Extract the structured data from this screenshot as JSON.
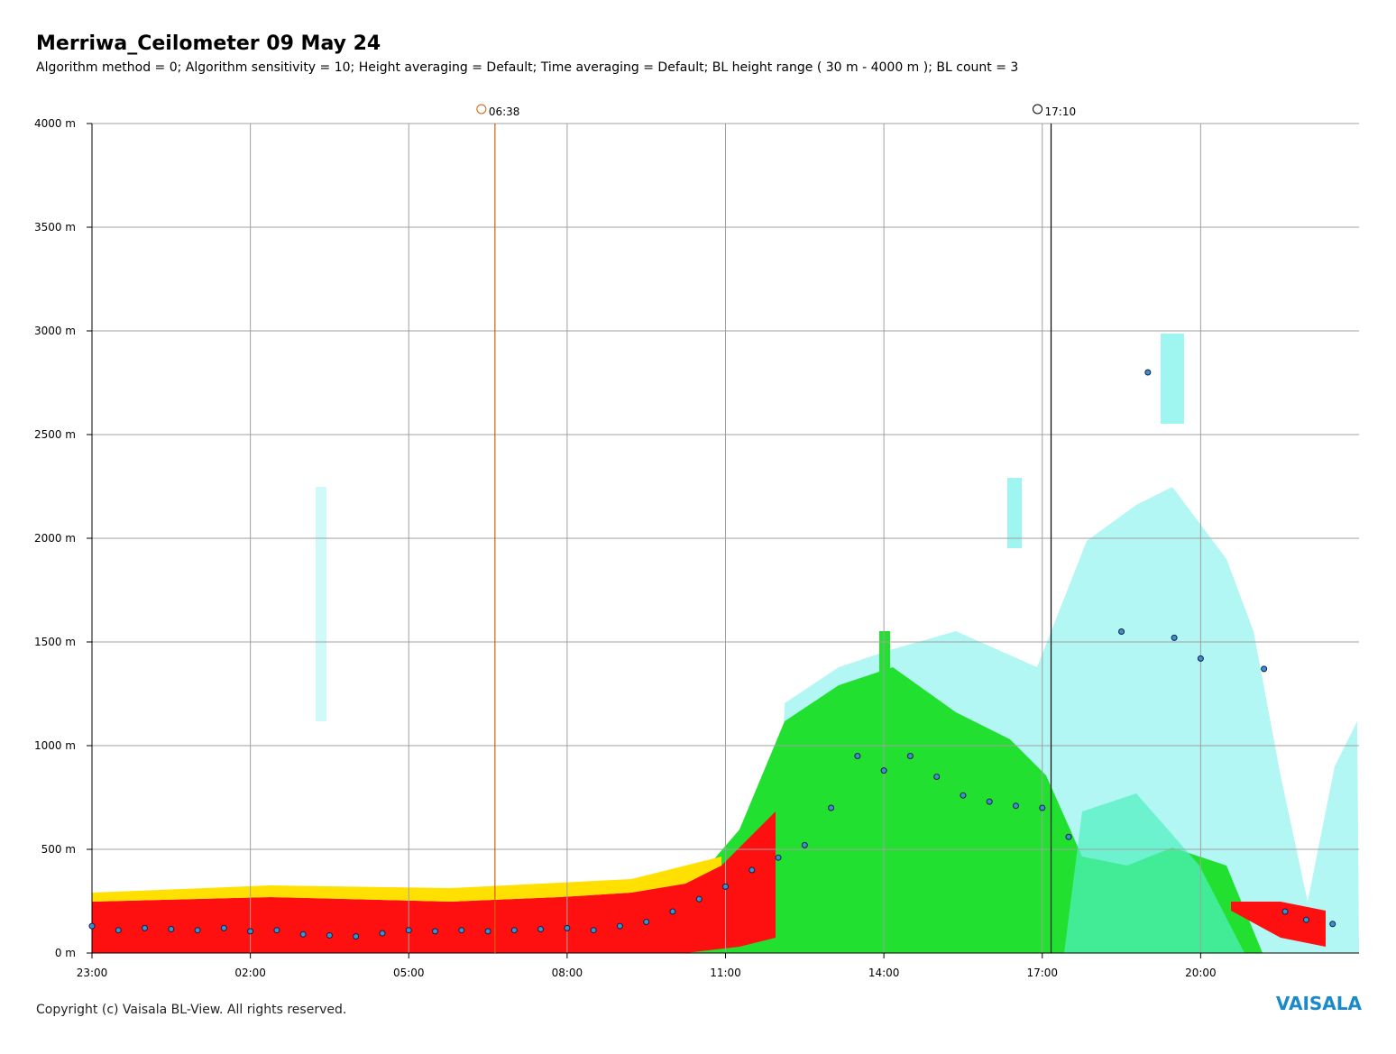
{
  "chart_data": {
    "type": "scatter",
    "title": "Merriwa_Ceilometer 09 May 24",
    "subtitle": "Algorithm method = 0; Algorithm sensitivity = 10; Height averaging = Default; Time averaging = Default; BL height range ( 30 m - 4000 m ); BL count = 3",
    "x": [
      23,
      23.5,
      24,
      24.5,
      25,
      25.5,
      26,
      26.5,
      27,
      27.5,
      28,
      28.5,
      29,
      29.5,
      30,
      30.5,
      31,
      31.5,
      32,
      32.5,
      33,
      33.5,
      34,
      34.5,
      35,
      35.5,
      36,
      36.5,
      37,
      37.5,
      38,
      38.5,
      39,
      39.5,
      40,
      40.5,
      41,
      41.5,
      42.5,
      43,
      43.5,
      44,
      45.2,
      45.6,
      46,
      46.5
    ],
    "values": [
      130,
      110,
      120,
      115,
      110,
      120,
      105,
      110,
      90,
      85,
      80,
      95,
      110,
      105,
      110,
      105,
      110,
      115,
      120,
      110,
      130,
      150,
      200,
      260,
      320,
      400,
      460,
      520,
      700,
      950,
      880,
      950,
      850,
      760,
      730,
      710,
      700,
      560,
      1550,
      2800,
      1520,
      1420,
      1370,
      200,
      160,
      140
    ],
    "color": "#3c8fd0",
    "xlim": [
      23,
      47
    ],
    "xticks": [
      {
        "value": 23,
        "label": "23:00"
      },
      {
        "value": 26,
        "label": "02:00"
      },
      {
        "value": 29,
        "label": "05:00"
      },
      {
        "value": 32,
        "label": "08:00"
      },
      {
        "value": 35,
        "label": "11:00"
      },
      {
        "value": 38,
        "label": "14:00"
      },
      {
        "value": 41,
        "label": "17:00"
      },
      {
        "value": 44,
        "label": "20:00"
      }
    ],
    "ylim": [
      0,
      4000
    ],
    "yticks": [
      {
        "value": 0,
        "label": "0 m"
      },
      {
        "value": 500,
        "label": "500 m"
      },
      {
        "value": 1000,
        "label": "1000 m"
      },
      {
        "value": 1500,
        "label": "1500 m"
      },
      {
        "value": 2000,
        "label": "2000 m"
      },
      {
        "value": 2500,
        "label": "2500 m"
      },
      {
        "value": 3000,
        "label": "3000 m"
      },
      {
        "value": 3500,
        "label": "3500 m"
      },
      {
        "value": 4000,
        "label": "4000 m"
      }
    ],
    "grid": true,
    "annotations": [
      {
        "value": 30.633,
        "label": "06:38",
        "color": "#d06010"
      },
      {
        "value": 41.167,
        "label": "17:10",
        "color": "#000000"
      }
    ],
    "footer": "Copyright (c) Vaisala BL-View. All rights reserved.",
    "logo": "VAISALA"
  }
}
